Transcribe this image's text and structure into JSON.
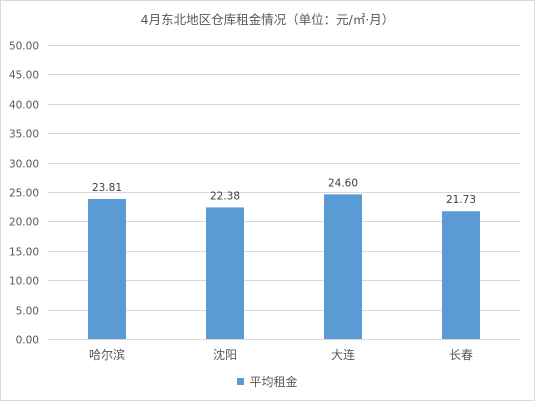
{
  "chart_data": {
    "type": "bar",
    "title": "4月东北地区仓库租金情况（单位：元/㎡·月）",
    "categories": [
      "哈尔滨",
      "沈阳",
      "大连",
      "长春"
    ],
    "series": [
      {
        "name": "平均租金",
        "values": [
          23.81,
          22.38,
          24.6,
          21.73
        ],
        "color": "#5b9bd5"
      }
    ],
    "data_labels": [
      "23.81",
      "22.38",
      "24.60",
      "21.73"
    ],
    "ylim": [
      0,
      50
    ],
    "yticks": [
      "0.00",
      "5.00",
      "10.00",
      "15.00",
      "20.00",
      "25.00",
      "30.00",
      "35.00",
      "40.00",
      "45.00",
      "50.00"
    ],
    "ytick_values": [
      0,
      5,
      10,
      15,
      20,
      25,
      30,
      35,
      40,
      45,
      50
    ],
    "grid": true,
    "legend_position": "bottom",
    "gridline_color": "#d9d9d9"
  }
}
